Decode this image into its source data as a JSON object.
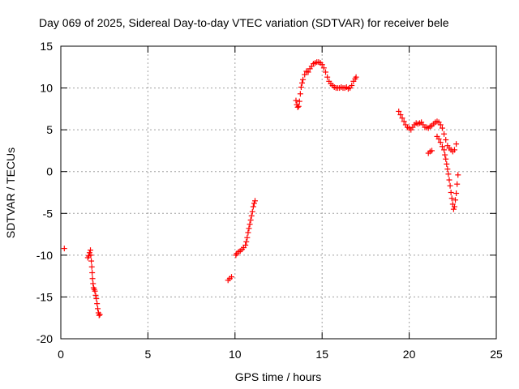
{
  "chart_data": {
    "type": "scatter",
    "title": "Day 069 of 2025, Sidereal Day-to-day VTEC variation (SDTVAR) for receiver bele",
    "xlabel": "GPS time / hours",
    "ylabel": "SDTVAR / TECUs",
    "xlim": [
      0,
      25
    ],
    "ylim": [
      -20,
      15
    ],
    "xticks": [
      0,
      5,
      10,
      15,
      20,
      25
    ],
    "yticks": [
      -20,
      -15,
      -10,
      -5,
      0,
      5,
      10,
      15
    ],
    "grid": true,
    "marker": "+",
    "color": "#ff0000",
    "series": [
      {
        "name": "SDTVAR",
        "points": [
          [
            0.2,
            -9.2
          ],
          [
            1.55,
            -10.3
          ],
          [
            1.6,
            -10.1
          ],
          [
            1.65,
            -9.7
          ],
          [
            1.7,
            -9.4
          ],
          [
            1.72,
            -10.0
          ],
          [
            1.75,
            -10.7
          ],
          [
            1.78,
            -11.4
          ],
          [
            1.8,
            -12.1
          ],
          [
            1.82,
            -12.8
          ],
          [
            1.85,
            -13.4
          ],
          [
            1.88,
            -13.9
          ],
          [
            1.92,
            -14.1
          ],
          [
            1.96,
            -14.3
          ],
          [
            2.0,
            -14.8
          ],
          [
            2.04,
            -15.2
          ],
          [
            2.08,
            -15.8
          ],
          [
            2.12,
            -16.4
          ],
          [
            2.16,
            -16.9
          ],
          [
            2.2,
            -17.2
          ],
          [
            2.24,
            -17.1
          ],
          [
            9.6,
            -13.0
          ],
          [
            9.7,
            -12.8
          ],
          [
            9.8,
            -12.6
          ],
          [
            10.05,
            -10.0
          ],
          [
            10.1,
            -9.8
          ],
          [
            10.2,
            -9.6
          ],
          [
            10.3,
            -9.5
          ],
          [
            10.4,
            -9.3
          ],
          [
            10.5,
            -9.1
          ],
          [
            10.6,
            -8.8
          ],
          [
            10.65,
            -8.4
          ],
          [
            10.7,
            -7.9
          ],
          [
            10.75,
            -7.3
          ],
          [
            10.8,
            -6.8
          ],
          [
            10.85,
            -6.3
          ],
          [
            10.9,
            -5.8
          ],
          [
            10.95,
            -5.3
          ],
          [
            11.0,
            -4.8
          ],
          [
            11.05,
            -4.2
          ],
          [
            11.1,
            -3.8
          ],
          [
            11.15,
            -3.5
          ],
          [
            13.5,
            8.5
          ],
          [
            13.55,
            8.0
          ],
          [
            13.6,
            7.7
          ],
          [
            13.65,
            7.8
          ],
          [
            13.7,
            8.4
          ],
          [
            13.75,
            9.3
          ],
          [
            13.8,
            10.1
          ],
          [
            13.85,
            10.6
          ],
          [
            13.9,
            11.0
          ],
          [
            14.0,
            11.6
          ],
          [
            14.1,
            12.0
          ],
          [
            14.2,
            11.9
          ],
          [
            14.3,
            12.3
          ],
          [
            14.4,
            12.6
          ],
          [
            14.5,
            12.9
          ],
          [
            14.6,
            13.0
          ],
          [
            14.7,
            13.1
          ],
          [
            14.8,
            13.1
          ],
          [
            14.9,
            13.0
          ],
          [
            15.0,
            12.8
          ],
          [
            15.1,
            12.4
          ],
          [
            15.2,
            11.9
          ],
          [
            15.3,
            11.3
          ],
          [
            15.4,
            10.8
          ],
          [
            15.5,
            10.5
          ],
          [
            15.6,
            10.3
          ],
          [
            15.7,
            10.1
          ],
          [
            15.8,
            10.0
          ],
          [
            15.9,
            10.0
          ],
          [
            16.0,
            10.0
          ],
          [
            16.1,
            10.1
          ],
          [
            16.2,
            10.0
          ],
          [
            16.3,
            10.0
          ],
          [
            16.4,
            10.1
          ],
          [
            16.5,
            9.9
          ],
          [
            16.6,
            10.0
          ],
          [
            16.7,
            10.3
          ],
          [
            16.8,
            10.8
          ],
          [
            16.9,
            11.1
          ],
          [
            16.95,
            11.3
          ],
          [
            19.4,
            7.2
          ],
          [
            19.5,
            6.8
          ],
          [
            19.6,
            6.4
          ],
          [
            19.7,
            6.0
          ],
          [
            19.8,
            5.6
          ],
          [
            19.9,
            5.3
          ],
          [
            20.0,
            5.2
          ],
          [
            20.1,
            5.0
          ],
          [
            20.2,
            5.3
          ],
          [
            20.3,
            5.6
          ],
          [
            20.4,
            5.8
          ],
          [
            20.5,
            5.7
          ],
          [
            20.6,
            5.8
          ],
          [
            20.7,
            5.9
          ],
          [
            20.8,
            5.6
          ],
          [
            20.9,
            5.3
          ],
          [
            21.0,
            5.3
          ],
          [
            21.1,
            5.2
          ],
          [
            21.2,
            5.4
          ],
          [
            21.3,
            5.5
          ],
          [
            21.4,
            5.7
          ],
          [
            21.5,
            5.9
          ],
          [
            21.6,
            6.0
          ],
          [
            21.7,
            5.9
          ],
          [
            21.8,
            5.6
          ],
          [
            21.9,
            5.2
          ],
          [
            22.0,
            4.5
          ],
          [
            22.1,
            3.8
          ],
          [
            22.2,
            3.1
          ],
          [
            22.3,
            2.8
          ],
          [
            22.4,
            2.6
          ],
          [
            22.5,
            2.4
          ],
          [
            22.6,
            2.6
          ],
          [
            22.7,
            3.3
          ],
          [
            21.1,
            2.2
          ],
          [
            21.2,
            2.4
          ],
          [
            21.3,
            2.5
          ],
          [
            21.6,
            4.2
          ],
          [
            21.7,
            3.9
          ],
          [
            21.8,
            3.5
          ],
          [
            21.9,
            3.0
          ],
          [
            22.0,
            2.6
          ],
          [
            22.05,
            2.0
          ],
          [
            22.1,
            1.5
          ],
          [
            22.15,
            0.9
          ],
          [
            22.2,
            0.3
          ],
          [
            22.25,
            -0.3
          ],
          [
            22.3,
            -1.0
          ],
          [
            22.35,
            -1.7
          ],
          [
            22.4,
            -2.5
          ],
          [
            22.45,
            -3.2
          ],
          [
            22.5,
            -3.9
          ],
          [
            22.55,
            -4.5
          ],
          [
            22.6,
            -4.2
          ],
          [
            22.65,
            -3.4
          ],
          [
            22.7,
            -2.6
          ],
          [
            22.75,
            -1.5
          ],
          [
            22.8,
            -0.4
          ]
        ]
      }
    ]
  }
}
